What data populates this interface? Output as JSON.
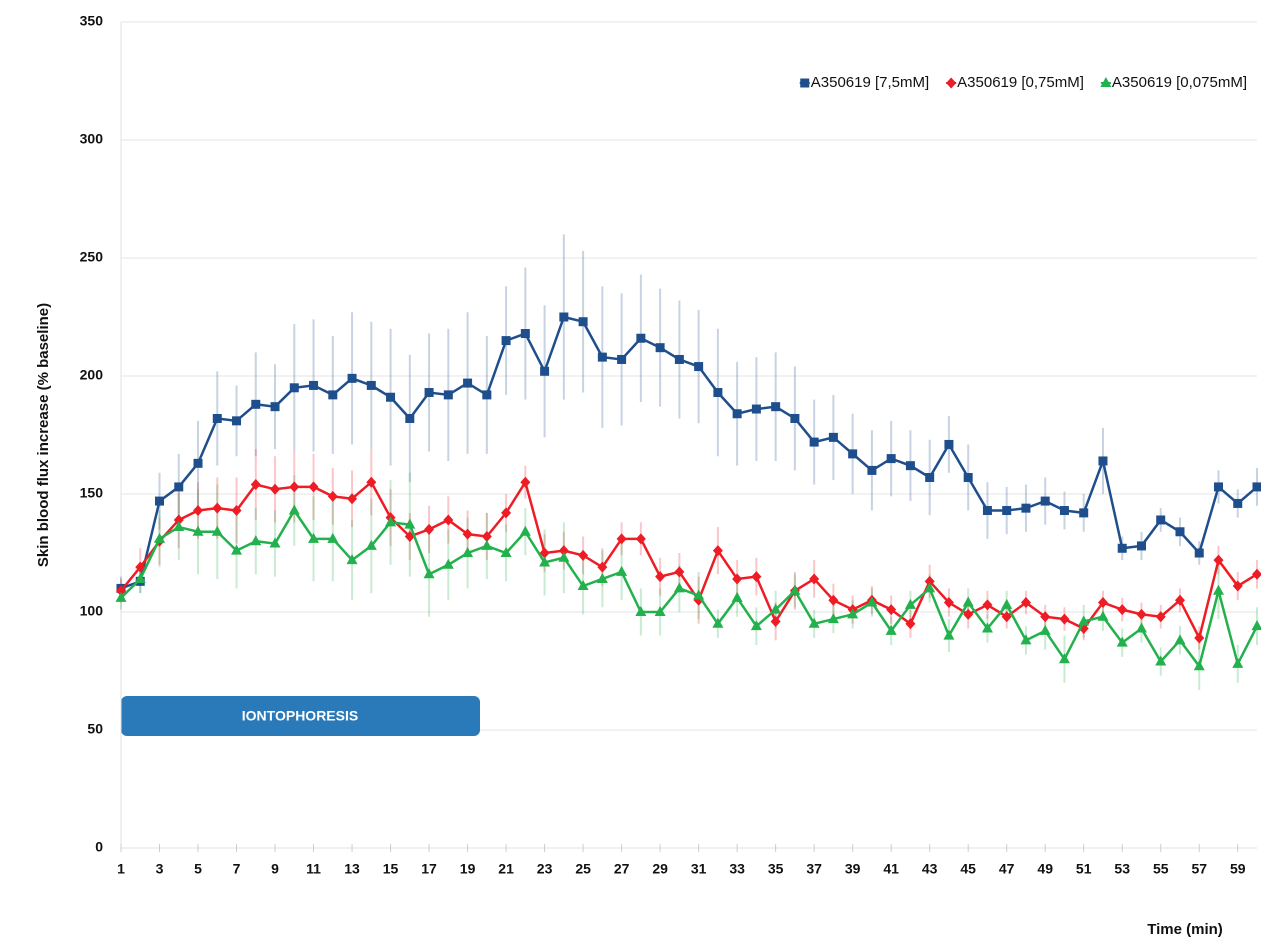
{
  "chart_data": {
    "type": "line",
    "xlabel": "Time (min)",
    "ylabel": "Skin blood flux increase (% baseline)",
    "annotation": "IONTOPHORESIS",
    "x": [
      1,
      2,
      3,
      4,
      5,
      6,
      7,
      8,
      9,
      10,
      11,
      12,
      13,
      14,
      15,
      16,
      17,
      18,
      19,
      20,
      21,
      22,
      23,
      24,
      25,
      26,
      27,
      28,
      29,
      30,
      31,
      32,
      33,
      34,
      35,
      36,
      37,
      38,
      39,
      40,
      41,
      42,
      43,
      44,
      45,
      46,
      47,
      48,
      49,
      50,
      51,
      52,
      53,
      54,
      55,
      56,
      57,
      58,
      59,
      60
    ],
    "xlim": [
      1,
      60
    ],
    "xticks": [
      1,
      3,
      5,
      7,
      9,
      11,
      13,
      15,
      17,
      19,
      21,
      23,
      25,
      27,
      29,
      31,
      33,
      35,
      37,
      39,
      41,
      43,
      45,
      47,
      49,
      51,
      53,
      55,
      57,
      59
    ],
    "ylim": [
      0,
      350
    ],
    "yticks": [
      0,
      50,
      100,
      150,
      200,
      250,
      300,
      350
    ],
    "grid": true,
    "legend": "top-right",
    "series": [
      {
        "name": "A350619 [7,5mM]",
        "color": "#1f4e8c",
        "marker": "square",
        "values": [
          110,
          113,
          147,
          153,
          163,
          182,
          181,
          188,
          187,
          195,
          196,
          192,
          199,
          196,
          191,
          182,
          193,
          192,
          197,
          192,
          215,
          218,
          202,
          225,
          223,
          208,
          207,
          216,
          212,
          207,
          204,
          193,
          184,
          186,
          187,
          182,
          172,
          174,
          167,
          160,
          165,
          162,
          157,
          171,
          157,
          143,
          143,
          144,
          147,
          143,
          142,
          164,
          127,
          128,
          139,
          134,
          125,
          153,
          146,
          153
        ],
        "errors": [
          5,
          5,
          12,
          14,
          18,
          20,
          15,
          22,
          18,
          27,
          28,
          25,
          28,
          27,
          29,
          27,
          25,
          28,
          30,
          25,
          23,
          28,
          28,
          35,
          30,
          30,
          28,
          27,
          25,
          25,
          24,
          27,
          22,
          22,
          23,
          22,
          18,
          18,
          17,
          17,
          16,
          15,
          16,
          12,
          14,
          12,
          10,
          10,
          10,
          8,
          8,
          14,
          5,
          6,
          5,
          6,
          5,
          7,
          6,
          8
        ]
      },
      {
        "name": "A350619 [0,75mM]",
        "color": "#ee1c24",
        "marker": "diamond",
        "values": [
          109,
          119,
          130,
          139,
          143,
          144,
          143,
          154,
          152,
          153,
          153,
          149,
          148,
          155,
          140,
          132,
          135,
          139,
          133,
          132,
          142,
          155,
          125,
          126,
          124,
          119,
          131,
          131,
          115,
          117,
          105,
          126,
          114,
          115,
          96,
          109,
          114,
          105,
          101,
          105,
          101,
          95,
          113,
          104,
          99,
          103,
          98,
          104,
          98,
          97,
          93,
          104,
          101,
          99,
          98,
          105,
          89,
          122,
          111,
          116
        ],
        "errors": [
          5,
          8,
          10,
          12,
          12,
          13,
          14,
          15,
          14,
          15,
          14,
          12,
          12,
          14,
          12,
          10,
          10,
          10,
          10,
          10,
          8,
          7,
          8,
          8,
          8,
          8,
          7,
          7,
          8,
          8,
          10,
          10,
          8,
          8,
          8,
          8,
          8,
          7,
          6,
          6,
          6,
          6,
          7,
          6,
          6,
          6,
          5,
          5,
          5,
          5,
          5,
          5,
          5,
          5,
          5,
          5,
          5,
          6,
          6,
          6
        ]
      },
      {
        "name": "A350619 [0,075mM]",
        "color": "#22b14c",
        "marker": "triangle",
        "values": [
          106,
          114,
          131,
          136,
          134,
          134,
          126,
          130,
          129,
          143,
          131,
          131,
          122,
          128,
          138,
          137,
          116,
          120,
          125,
          128,
          125,
          134,
          121,
          123,
          111,
          114,
          117,
          100,
          100,
          110,
          107,
          95,
          106,
          94,
          101,
          109,
          95,
          97,
          99,
          104,
          92,
          103,
          110,
          90,
          104,
          93,
          103,
          88,
          92,
          80,
          96,
          98,
          87,
          93,
          79,
          88,
          77,
          109,
          78,
          94
        ],
        "errors": [
          5,
          6,
          12,
          14,
          18,
          20,
          16,
          14,
          14,
          15,
          18,
          18,
          17,
          20,
          18,
          22,
          18,
          15,
          15,
          14,
          12,
          10,
          14,
          15,
          12,
          12,
          12,
          10,
          10,
          10,
          10,
          6,
          8,
          8,
          8,
          7,
          6,
          6,
          6,
          6,
          6,
          6,
          6,
          7,
          6,
          6,
          6,
          6,
          8,
          10,
          7,
          6,
          6,
          6,
          6,
          6,
          10,
          12,
          8,
          8
        ]
      }
    ]
  }
}
